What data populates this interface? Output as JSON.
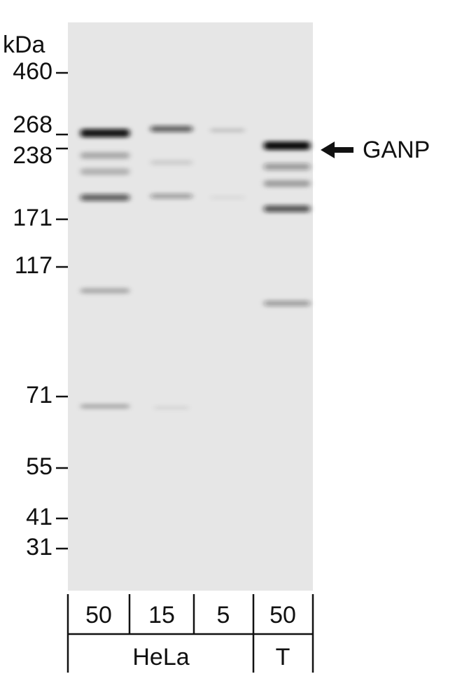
{
  "unit": "kDa",
  "markers": [
    "460",
    "268",
    "238",
    "171",
    "117",
    "71",
    "55",
    "41",
    "31"
  ],
  "target": "GANP",
  "lanes": [
    "50",
    "15",
    "5",
    "50"
  ],
  "groups": [
    "HeLa",
    "T"
  ]
}
